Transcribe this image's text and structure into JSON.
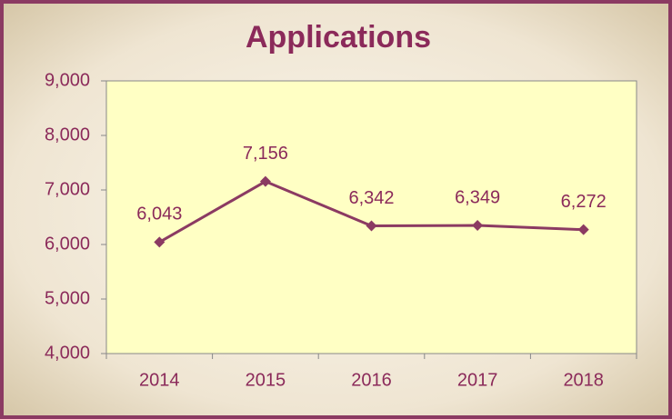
{
  "chart_data": {
    "type": "line",
    "title": "Applications",
    "categories": [
      "2014",
      "2015",
      "2016",
      "2017",
      "2018"
    ],
    "values": [
      6043,
      7156,
      6342,
      6349,
      6272
    ],
    "value_labels": [
      "6,043",
      "7,156",
      "6,342",
      "6,349",
      "6,272"
    ],
    "color": "#8b3a62",
    "ylim": [
      4000,
      9000
    ],
    "yticks": [
      {
        "value": 4000,
        "label": "4,000"
      },
      {
        "value": 5000,
        "label": "5,000"
      },
      {
        "value": 6000,
        "label": "6,000"
      },
      {
        "value": 7000,
        "label": "7,000"
      },
      {
        "value": 8000,
        "label": "8,000"
      },
      {
        "value": 9000,
        "label": "9,000"
      }
    ],
    "grid": false
  }
}
